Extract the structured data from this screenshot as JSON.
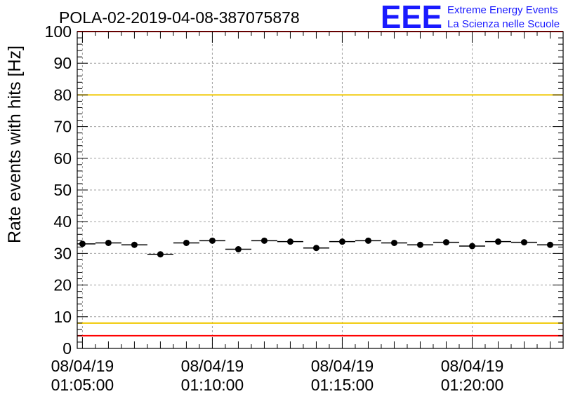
{
  "title": "POLA-02-2019-04-08-387075878",
  "logo": {
    "letters": "EEE",
    "line1": "Extreme Energy Events",
    "line2": "La Scienza nelle Scuole",
    "color": "#1a1aff"
  },
  "chart_data": {
    "type": "scatter",
    "title": "POLA-02-2019-04-08-387075878",
    "ylabel": "Rate events with hits [Hz]",
    "xlabel": "",
    "ylim": [
      0,
      100
    ],
    "yticks": [
      0,
      10,
      20,
      30,
      40,
      50,
      60,
      70,
      80,
      90,
      100
    ],
    "xrange_minutes": [
      4.8,
      23.5
    ],
    "xticks": [
      {
        "minute": 5,
        "date": "08/04/19",
        "time": "01:05:00"
      },
      {
        "minute": 10,
        "date": "08/04/19",
        "time": "01:10:00"
      },
      {
        "minute": 15,
        "date": "08/04/19",
        "time": "01:15:00"
      },
      {
        "minute": 20,
        "date": "08/04/19",
        "time": "01:20:00"
      }
    ],
    "bin_width_minutes": 1,
    "grid": true,
    "series": [
      {
        "bin_center_minutes": [
          5,
          6,
          7,
          8,
          9,
          10,
          11,
          12,
          13,
          14,
          15,
          16,
          17,
          18,
          19,
          20,
          21,
          22,
          23
        ],
        "values": [
          33.0,
          33.3,
          32.7,
          29.7,
          33.3,
          34.0,
          31.3,
          34.0,
          33.7,
          31.7,
          33.7,
          34.0,
          33.3,
          32.7,
          33.5,
          32.3,
          33.7,
          33.5,
          32.7
        ]
      }
    ],
    "reference_lines": [
      {
        "y": 80,
        "color": "#f0c800"
      },
      {
        "y": 8,
        "color": "#f0c800"
      },
      {
        "y": 4,
        "color": "#ff0000"
      },
      {
        "y": 100,
        "color": "#ff0000"
      }
    ],
    "colors": {
      "marker": "#000000",
      "grid": "#a0a0a0"
    }
  }
}
